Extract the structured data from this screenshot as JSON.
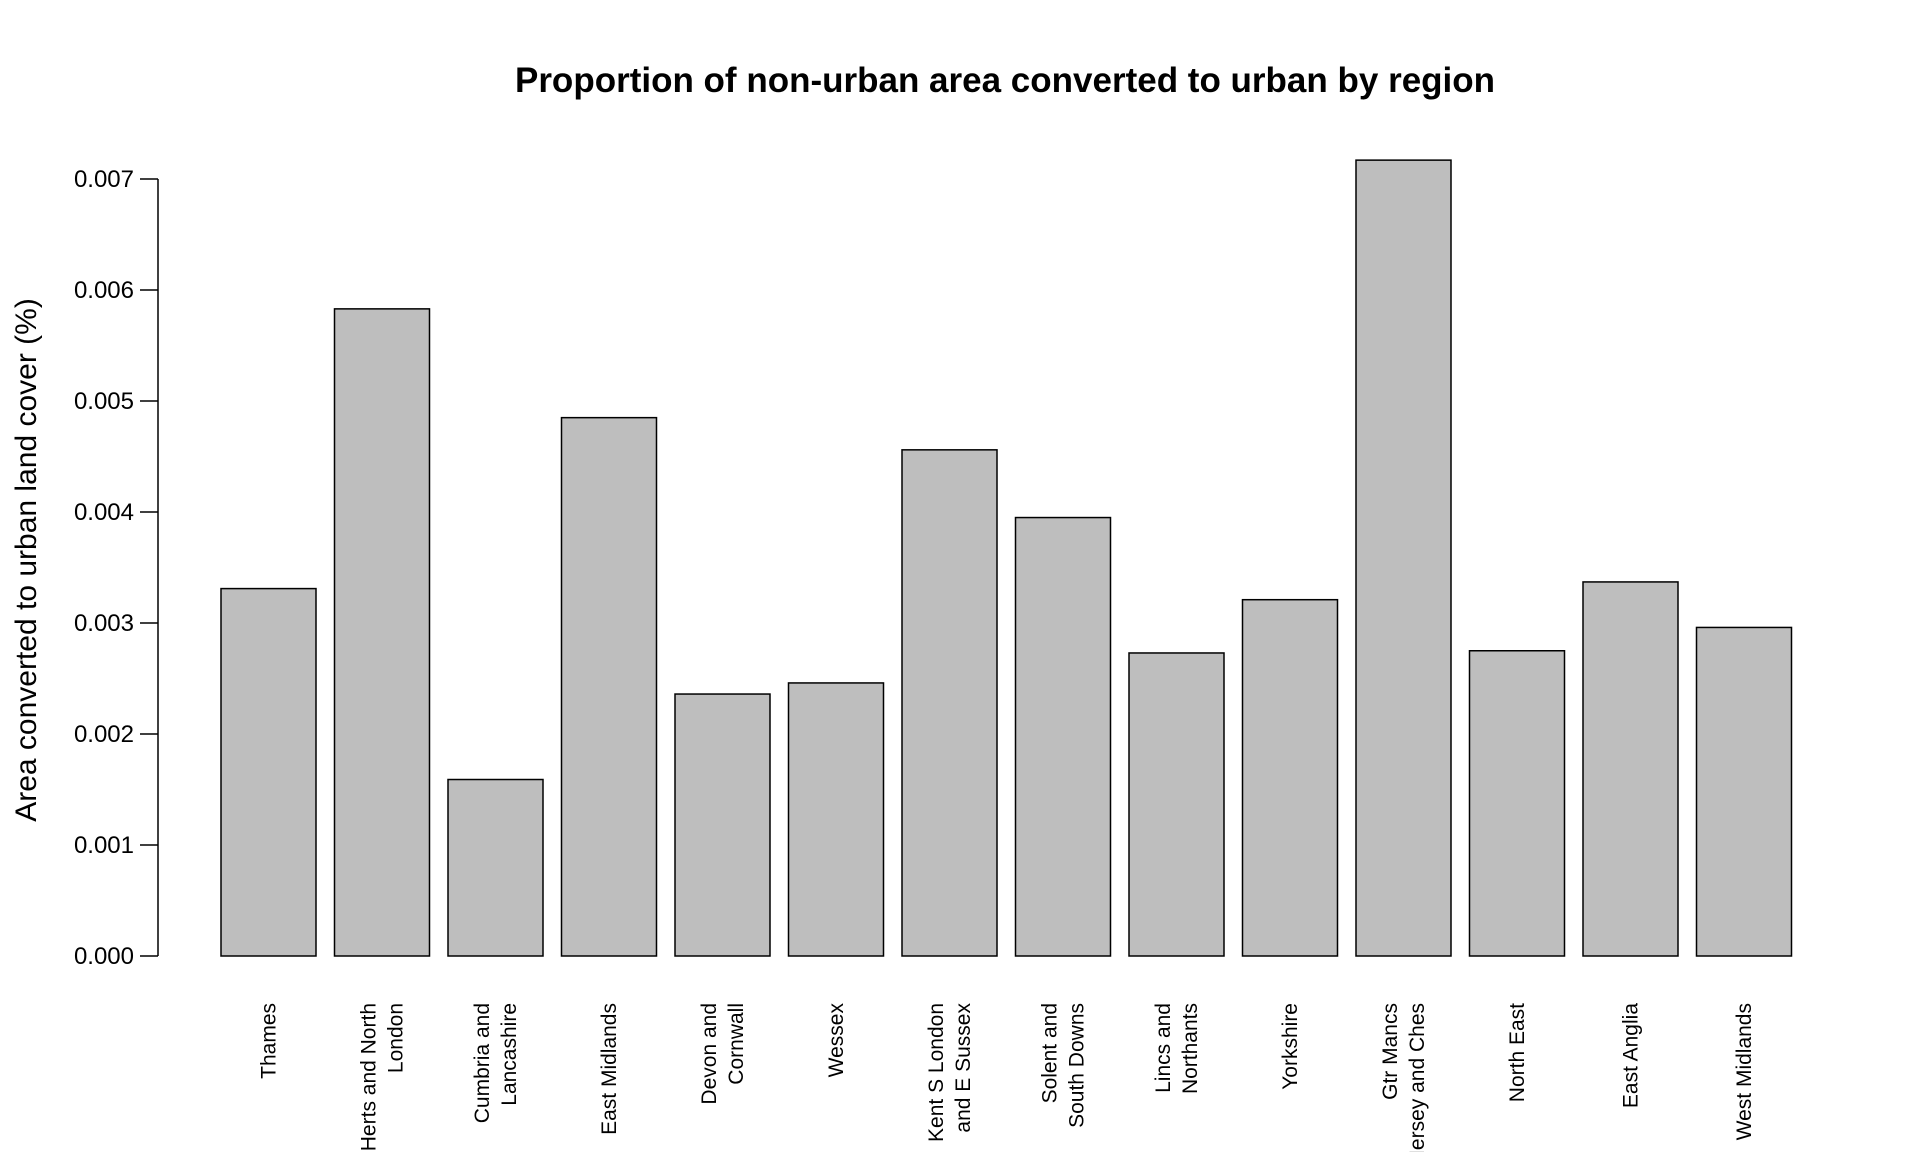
{
  "chart_data": {
    "type": "bar",
    "title": "Proportion of non-urban area converted to urban by region",
    "xlabel": "",
    "ylabel": "Area converted to urban land cover (%)",
    "ylim": [
      0,
      0.0072
    ],
    "yticks": [
      "0.000",
      "0.001",
      "0.002",
      "0.003",
      "0.004",
      "0.005",
      "0.006",
      "0.007"
    ],
    "ytick_values": [
      0,
      0.001,
      0.002,
      0.003,
      0.004,
      0.005,
      0.006,
      0.007
    ],
    "categories": [
      [
        "Thames"
      ],
      [
        "Herts and North",
        "London"
      ],
      [
        "Cumbria and",
        "Lancashire"
      ],
      [
        "East Midlands"
      ],
      [
        "Devon and",
        "Cornwall"
      ],
      [
        "Wessex"
      ],
      [
        "Kent S London",
        "and E Sussex"
      ],
      [
        "Solent and",
        "South Downs"
      ],
      [
        "Lincs and",
        "Northants"
      ],
      [
        "Yorkshire"
      ],
      [
        "Gtr Mancs",
        "Mersey and Ches"
      ],
      [
        "North East"
      ],
      [
        "East Anglia"
      ],
      [
        "West Midlands"
      ]
    ],
    "values": [
      0.00331,
      0.00583,
      0.00159,
      0.00485,
      0.00236,
      0.00246,
      0.00456,
      0.00395,
      0.00273,
      0.00321,
      0.00717,
      0.00275,
      0.00337,
      0.00296
    ],
    "bar_color": "#bebebe",
    "grid": false,
    "legend": "none"
  }
}
